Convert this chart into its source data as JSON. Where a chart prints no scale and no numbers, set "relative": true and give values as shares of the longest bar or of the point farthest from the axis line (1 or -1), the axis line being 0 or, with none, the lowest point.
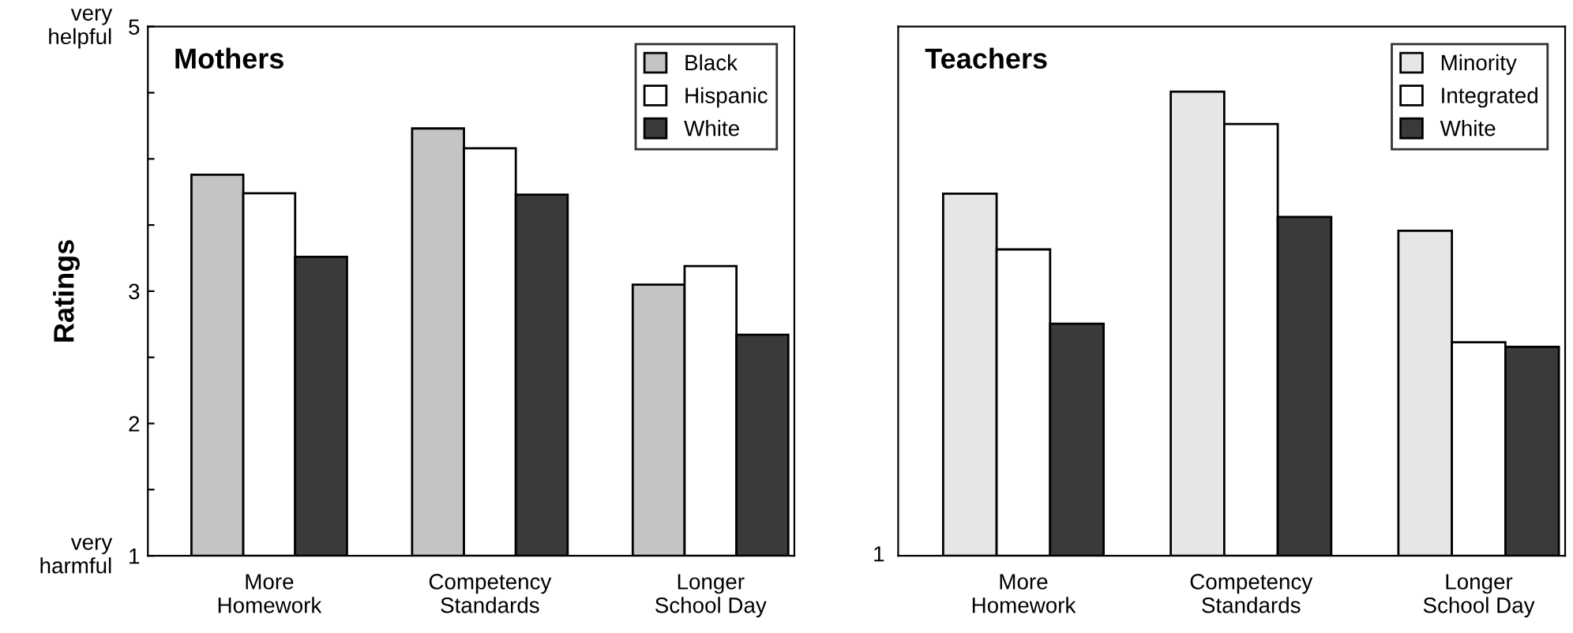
{
  "chart_data": [
    {
      "type": "bar",
      "title": "Mothers",
      "ylabel": "Ratings",
      "categories": [
        "More\nHomework",
        "Competency\nStandards",
        "Longer\nSchool Day"
      ],
      "series": [
        {
          "name": "Black",
          "color": "#c4c4c4",
          "values": [
            3.88,
            4.23,
            3.05
          ]
        },
        {
          "name": "Hispanic",
          "color": "#ffffff",
          "values": [
            3.74,
            4.08,
            3.19
          ]
        },
        {
          "name": "White",
          "color": "#3a3a3a",
          "values": [
            3.26,
            3.73,
            2.67
          ]
        }
      ],
      "ylim": [
        1,
        5
      ],
      "yticks": [
        1,
        {
          "value": 1.5,
          "label": null
        },
        2,
        {
          "value": 2.5,
          "label": null
        },
        3,
        {
          "value": 3.5,
          "label": null
        },
        {
          "value": 4,
          "label": null
        },
        {
          "value": 4.5,
          "label": null
        },
        5
      ],
      "annotations": [
        "very\nhelpful",
        "very\nharmful"
      ],
      "legend": "top right",
      "grid": false
    },
    {
      "type": "bar",
      "title": "Teachers",
      "categories": [
        "More\nHomework",
        "Competency\nStandards",
        "Longer\nSchool Day"
      ],
      "series": [
        {
          "name": "Minority",
          "color": "#e6e6e6",
          "values": [
            0.78,
            1,
            0.7
          ]
        },
        {
          "name": "Integrated",
          "color": "#ffffff",
          "values": [
            0.66,
            0.93,
            0.46
          ]
        },
        {
          "name": "White",
          "color": "#3a3a3a",
          "values": [
            0.5,
            0.73,
            0.45
          ]
        }
      ],
      "relative": true,
      "annotations": [
        "1"
      ],
      "legend": "top right",
      "grid": false
    }
  ]
}
